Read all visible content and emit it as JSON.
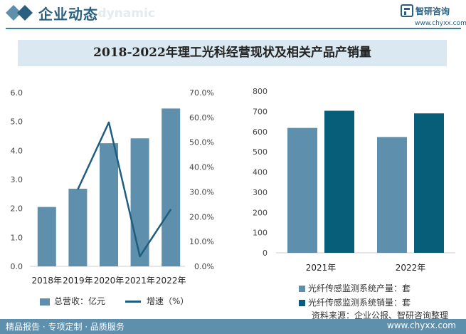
{
  "header": {
    "title": "企业动态",
    "subtitle_ghost": "e dynamic",
    "brand": "智研咨询",
    "url": "www.chyxx.com"
  },
  "chart_title": "2018-2022年理工光科经营现状及相关产品产销量",
  "colors": {
    "bar_left": "#5e8fac",
    "line": "#1f5e7e",
    "bar_production": "#5e8fac",
    "bar_sales": "#065e78",
    "footer": "#5e8fac"
  },
  "chart_data": [
    {
      "type": "bar",
      "categories": [
        "2018年",
        "2019年",
        "2020年",
        "2021年",
        "2022年"
      ],
      "series": [
        {
          "name": "总营收：亿元",
          "values": [
            2.05,
            2.68,
            4.25,
            4.42,
            5.45
          ],
          "axis": "left"
        },
        {
          "name": "增速（%）",
          "type": "line",
          "values": [
            null,
            31.0,
            58.0,
            4.0,
            23.0
          ],
          "axis": "right"
        }
      ],
      "y_left": {
        "ticks": [
          "0.0",
          "1.0",
          "2.0",
          "3.0",
          "4.0",
          "5.0",
          "6.0"
        ],
        "ylim": [
          0,
          6
        ]
      },
      "y_right": {
        "ticks": [
          "0.0%",
          "10.0%",
          "20.0%",
          "30.0%",
          "40.0%",
          "50.0%",
          "60.0%",
          "70.0%"
        ],
        "ylim": [
          0,
          70
        ]
      },
      "legend": "bottom"
    },
    {
      "type": "bar",
      "categories": [
        "2021年",
        "2022年"
      ],
      "series": [
        {
          "name": "光纤传感监测系统产量：套",
          "values": [
            618,
            573
          ]
        },
        {
          "name": "光纤传感监测系统销量：套",
          "values": [
            703,
            690
          ]
        }
      ],
      "y": {
        "ticks": [
          "0",
          "100",
          "200",
          "300",
          "400",
          "500",
          "600",
          "700",
          "800"
        ],
        "ylim": [
          0,
          800
        ]
      },
      "legend": "bottom"
    }
  ],
  "footer": {
    "left": "精品报告 · 专项定制 · 品质服务",
    "right": "www.chyxx.com"
  },
  "source": "资料来源：企业公报、智研咨询整理"
}
